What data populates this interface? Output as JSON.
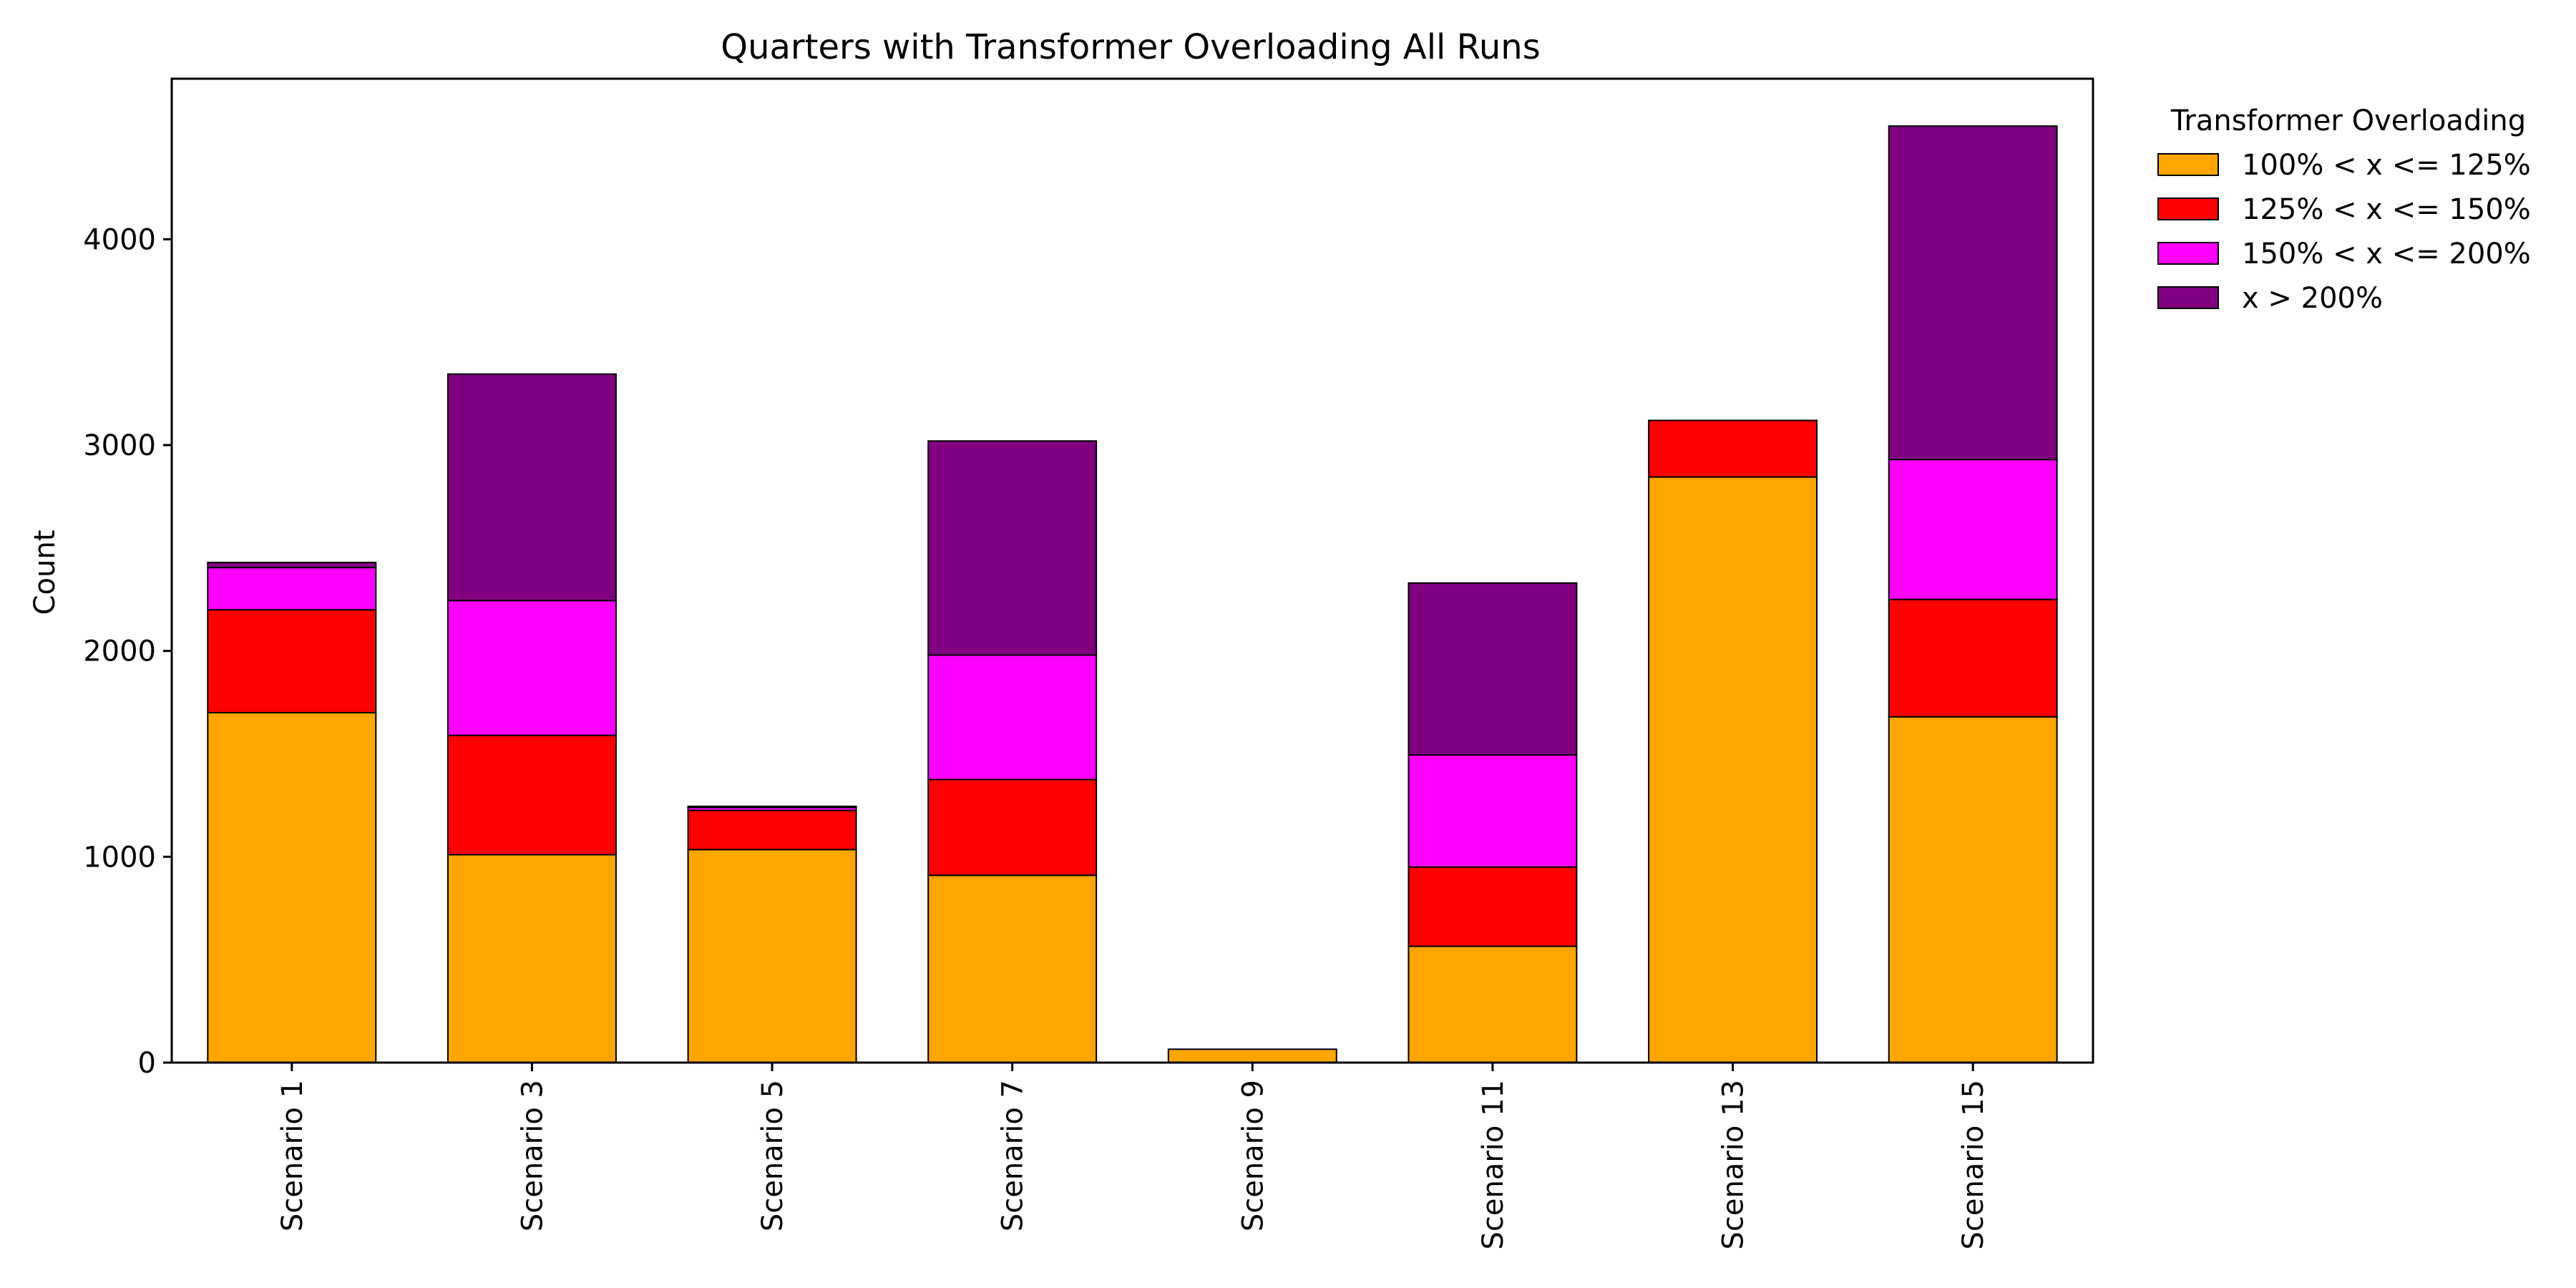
{
  "chart_data": {
    "type": "bar",
    "stacked": true,
    "title": "Quarters with Transformer Overloading All Runs",
    "xlabel": "",
    "ylabel": "Count",
    "ylim": [
      0,
      4780
    ],
    "yticks": [
      0,
      1000,
      2000,
      3000,
      4000
    ],
    "grid": false,
    "legend_position": "outside-right-top",
    "legend_title": "Transformer Overloading",
    "categories": [
      "Scenario 1",
      "Scenario 3",
      "Scenario 5",
      "Scenario 7",
      "Scenario 9",
      "Scenario 11",
      "Scenario 13",
      "Scenario 15"
    ],
    "series": [
      {
        "name": "100% < x <= 125%",
        "color": "#FFA500",
        "values": [
          1700,
          1010,
          1035,
          910,
          65,
          565,
          2845,
          1680
        ]
      },
      {
        "name": "125% < x <= 150%",
        "color": "#FF0000",
        "values": [
          500,
          580,
          190,
          465,
          0,
          385,
          275,
          570
        ]
      },
      {
        "name": "150% < x <= 200%",
        "color": "#FF00FF",
        "values": [
          205,
          655,
          15,
          605,
          0,
          545,
          0,
          680
        ]
      },
      {
        "name": "x > 200%",
        "color": "#800080",
        "values": [
          25,
          1100,
          5,
          1040,
          0,
          835,
          0,
          1620
        ]
      }
    ]
  }
}
